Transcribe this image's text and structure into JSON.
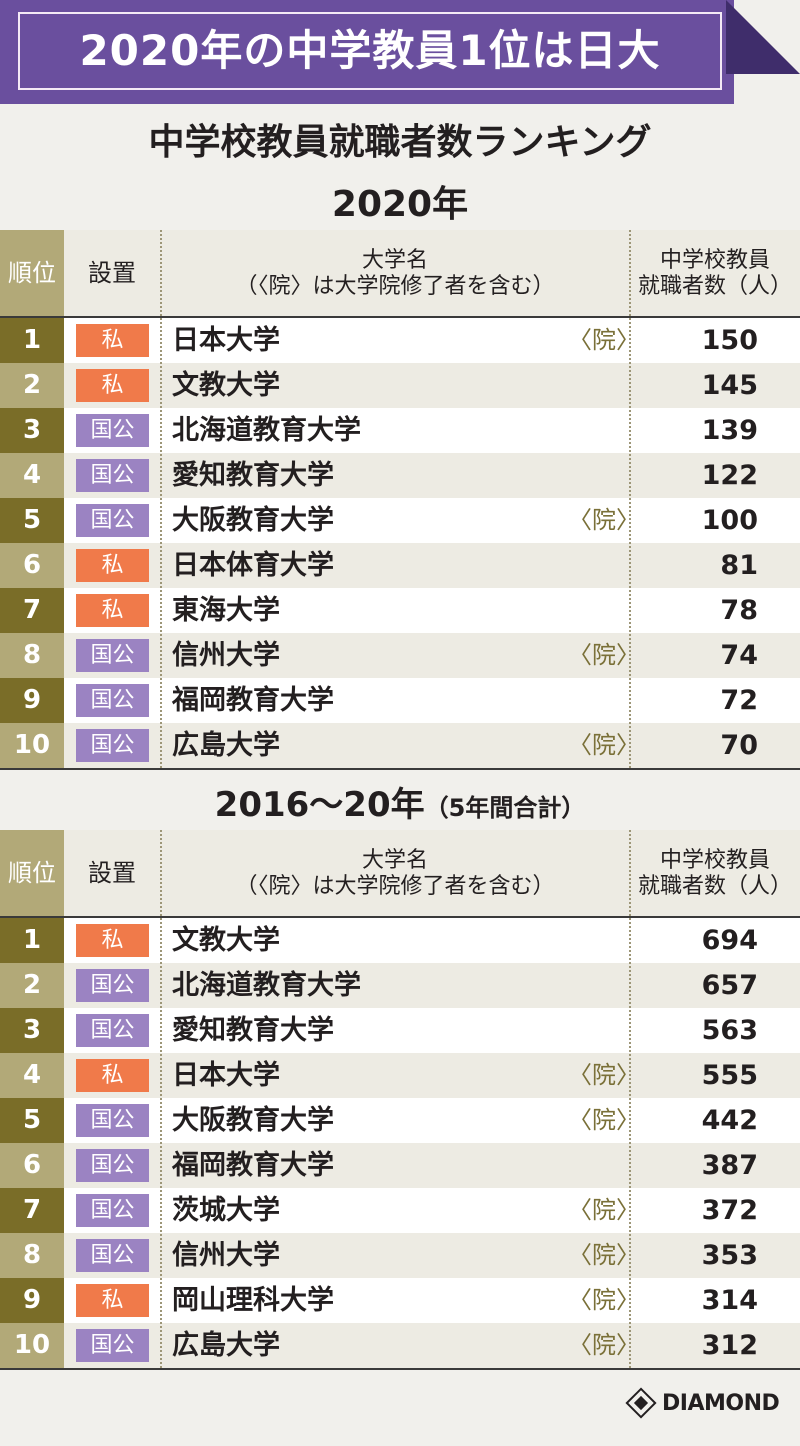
{
  "banner": {
    "title": "2020年の中学教員1位は日大",
    "color": "#6a4f9e"
  },
  "heading": "中学校教員就職者数ランキング",
  "colors": {
    "rank_dark": "#7a6d28",
    "rank_light": "#b2a978",
    "private": "#f07a4a",
    "public": "#9b83c2",
    "row_a": "#ffffff",
    "row_b": "#edebe3"
  },
  "headers": {
    "rank": "順位",
    "establishment": "設置",
    "name_line1": "大学名",
    "name_line2": "（〈院〉は大学院修了者を含む）",
    "count_line1": "中学校教員",
    "count_line2": "就職者数（人）"
  },
  "chart_data": [
    {
      "type": "table",
      "title": "2020年",
      "rows": [
        {
          "rank": "1",
          "type": "私",
          "name": "日本大学",
          "grad": "〈院〉",
          "count": 150
        },
        {
          "rank": "2",
          "type": "私",
          "name": "文教大学",
          "grad": "",
          "count": 145
        },
        {
          "rank": "3",
          "type": "国公",
          "name": "北海道教育大学",
          "grad": "",
          "count": 139
        },
        {
          "rank": "4",
          "type": "国公",
          "name": "愛知教育大学",
          "grad": "",
          "count": 122
        },
        {
          "rank": "5",
          "type": "国公",
          "name": "大阪教育大学",
          "grad": "〈院〉",
          "count": 100
        },
        {
          "rank": "6",
          "type": "私",
          "name": "日本体育大学",
          "grad": "",
          "count": 81
        },
        {
          "rank": "7",
          "type": "私",
          "name": "東海大学",
          "grad": "",
          "count": 78
        },
        {
          "rank": "8",
          "type": "国公",
          "name": "信州大学",
          "grad": "〈院〉",
          "count": 74
        },
        {
          "rank": "9",
          "type": "国公",
          "name": "福岡教育大学",
          "grad": "",
          "count": 72
        },
        {
          "rank": "10",
          "type": "国公",
          "name": "広島大学",
          "grad": "〈院〉",
          "count": 70
        }
      ]
    },
    {
      "type": "table",
      "title": "2016〜20年",
      "title_note": "（5年間合計）",
      "rows": [
        {
          "rank": "1",
          "type": "私",
          "name": "文教大学",
          "grad": "",
          "count": 694
        },
        {
          "rank": "2",
          "type": "国公",
          "name": "北海道教育大学",
          "grad": "",
          "count": 657
        },
        {
          "rank": "3",
          "type": "国公",
          "name": "愛知教育大学",
          "grad": "",
          "count": 563
        },
        {
          "rank": "4",
          "type": "私",
          "name": "日本大学",
          "grad": "〈院〉",
          "count": 555
        },
        {
          "rank": "5",
          "type": "国公",
          "name": "大阪教育大学",
          "grad": "〈院〉",
          "count": 442
        },
        {
          "rank": "6",
          "type": "国公",
          "name": "福岡教育大学",
          "grad": "",
          "count": 387
        },
        {
          "rank": "7",
          "type": "国公",
          "name": "茨城大学",
          "grad": "〈院〉",
          "count": 372
        },
        {
          "rank": "8",
          "type": "国公",
          "name": "信州大学",
          "grad": "〈院〉",
          "count": 353
        },
        {
          "rank": "9",
          "type": "私",
          "name": "岡山理科大学",
          "grad": "〈院〉",
          "count": 314
        },
        {
          "rank": "10",
          "type": "国公",
          "name": "広島大学",
          "grad": "〈院〉",
          "count": 312
        }
      ]
    }
  ],
  "logo": "DIAMOND"
}
